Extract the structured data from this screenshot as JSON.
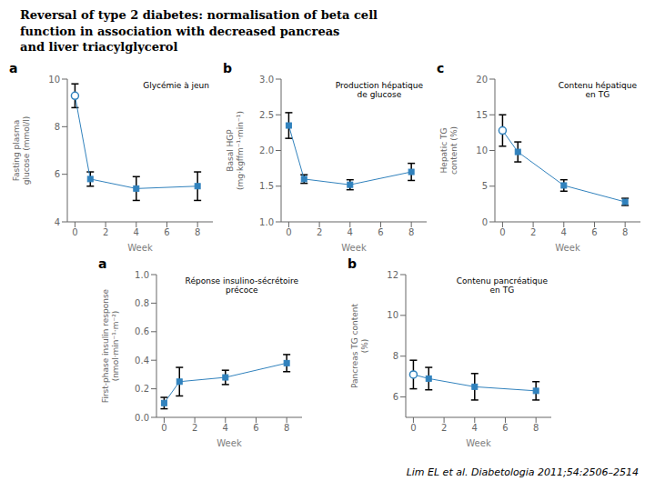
{
  "title": "Reversal of type 2 diabetes: normalisation of beta cell\nfunction in association with decreased pancreas\nand liver triacylglycerol",
  "annotations": [
    "Lim EL et al. Diabetologia 2011;54:2506–2514"
  ],
  "chart_data": [
    {
      "type": "line",
      "label": "a",
      "title": "Glycémie à jeun",
      "x_label": "Week",
      "y_label": "Fasting plasma\nglucose (mmol/l)",
      "x": [
        0,
        1,
        4,
        8
      ],
      "values": [
        9.3,
        5.8,
        5.4,
        5.5
      ],
      "errors": [
        0.5,
        0.3,
        0.5,
        0.6
      ],
      "marker": [
        "open_circle",
        "square",
        "square",
        "square"
      ],
      "xlim": [
        -0.5,
        9
      ],
      "xticks": [
        0,
        2,
        4,
        6,
        8
      ],
      "ylim": [
        4,
        10
      ],
      "yticks": [
        4,
        6,
        8,
        10
      ],
      "grid": false
    },
    {
      "type": "line",
      "label": "b",
      "title": "Production hépatique\nde glucose",
      "x_label": "Week",
      "y_label": "Basal HGP\n(mg·kgffm⁻¹·min⁻¹)",
      "x": [
        0,
        1,
        4,
        8
      ],
      "values": [
        2.35,
        1.6,
        1.52,
        1.7
      ],
      "errors": [
        0.18,
        0.06,
        0.07,
        0.12
      ],
      "marker": [
        "square",
        "square",
        "square",
        "square"
      ],
      "xlim": [
        -0.5,
        9
      ],
      "xticks": [
        0,
        2,
        4,
        6,
        8
      ],
      "ylim": [
        1.0,
        3.0
      ],
      "yticks": [
        {
          "value": 1.0,
          "label": "1.0"
        },
        1.5,
        {
          "value": 2.0,
          "label": "2.0"
        },
        2.5,
        {
          "value": 3.0,
          "label": "3.0"
        }
      ],
      "grid": false
    },
    {
      "type": "line",
      "label": "c",
      "title": "Contenu hépatique\nen TG",
      "x_label": "Week",
      "y_label": "Hepatic TG\ncontent (%)",
      "x": [
        0,
        1,
        4,
        8
      ],
      "values": [
        12.8,
        9.8,
        5.1,
        2.8
      ],
      "errors": [
        2.2,
        1.4,
        0.8,
        0.5
      ],
      "marker": [
        "open_circle",
        "square",
        "square",
        "square"
      ],
      "xlim": [
        -0.5,
        9
      ],
      "xticks": [
        0,
        2,
        4,
        6,
        8
      ],
      "ylim": [
        0,
        20
      ],
      "yticks": [
        0,
        5,
        10,
        15,
        20
      ],
      "grid": false
    },
    {
      "type": "line",
      "label": "a",
      "title": "Réponse insulino-sécrétoire\nprécoce",
      "x_label": "Week",
      "y_label": "First-phase insulin response\n(nmol·min⁻¹·m⁻²)",
      "x": [
        0,
        1,
        4,
        8
      ],
      "values": [
        0.1,
        0.25,
        0.28,
        0.38
      ],
      "errors": [
        0.04,
        0.1,
        0.05,
        0.06
      ],
      "marker": [
        "square",
        "square",
        "square",
        "square"
      ],
      "xlim": [
        -0.5,
        9
      ],
      "xticks": [
        0,
        2,
        4,
        6,
        8
      ],
      "ylim": [
        0.0,
        1.0
      ],
      "yticks": [
        {
          "value": 0.0,
          "label": "0.0"
        },
        0.2,
        0.4,
        0.6,
        0.8,
        {
          "value": 1.0,
          "label": "1.0"
        }
      ],
      "grid": false
    },
    {
      "type": "line",
      "label": "b",
      "title": "Contenu pancréatique\nen TG",
      "x_label": "Week",
      "y_label": "Pancreas TG content\n(%)",
      "x": [
        0,
        1,
        4,
        8
      ],
      "values": [
        7.1,
        6.9,
        6.5,
        6.3
      ],
      "errors": [
        0.7,
        0.55,
        0.65,
        0.45
      ],
      "marker": [
        "open_circle",
        "square",
        "square",
        "square"
      ],
      "xlim": [
        -0.5,
        9
      ],
      "xticks": [
        0,
        2,
        4,
        6,
        8
      ],
      "ylim": [
        5,
        12
      ],
      "yticks": [
        6,
        8,
        10,
        12
      ],
      "grid": false
    }
  ]
}
